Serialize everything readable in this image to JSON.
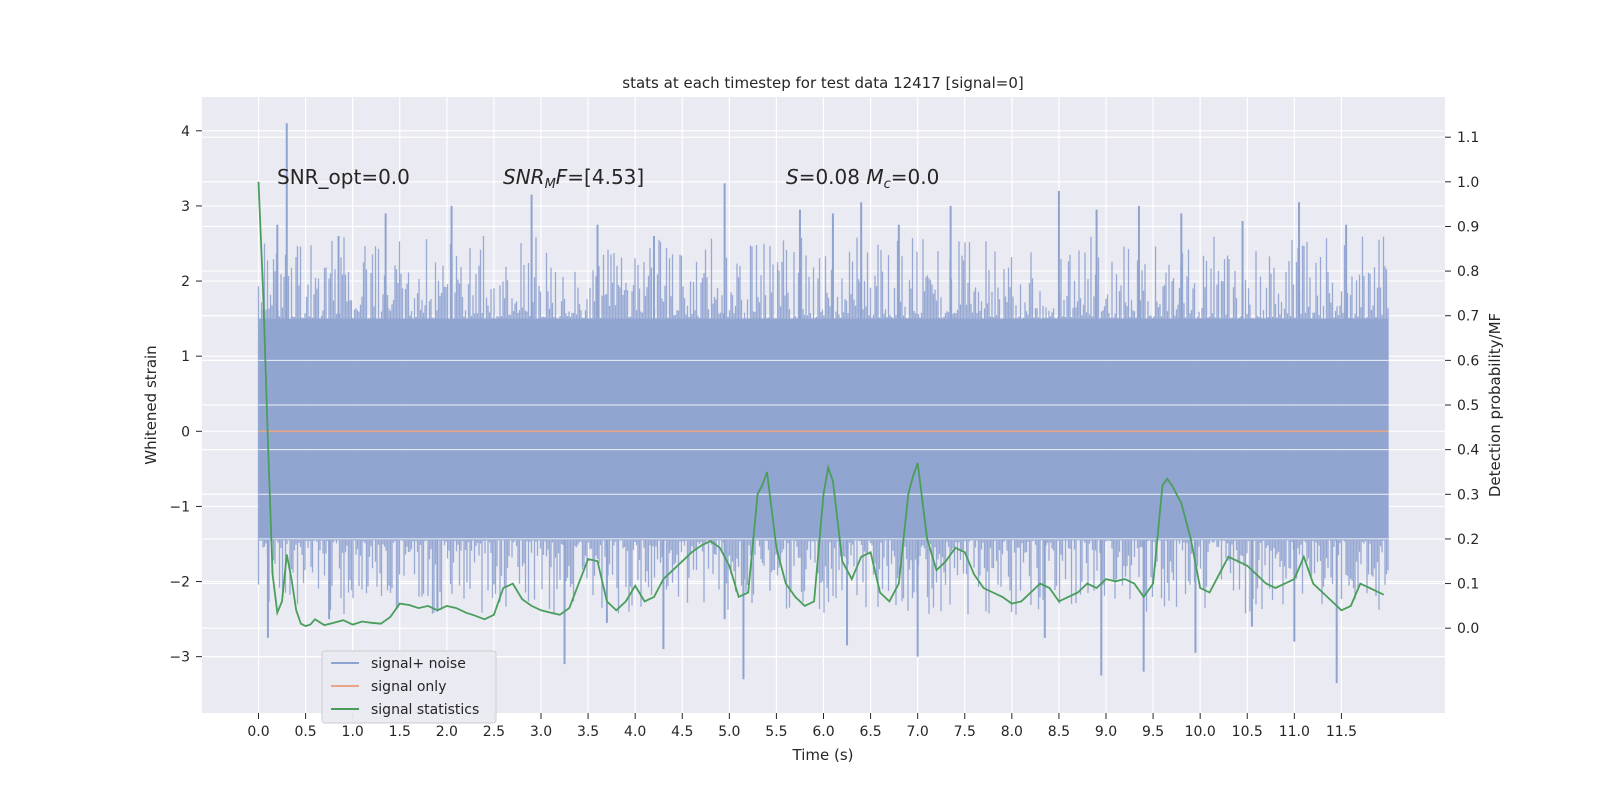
{
  "chart_data": {
    "type": "line",
    "title": "stats at each timestep for test data 12417 [signal=0]",
    "xlabel": "Time (s)",
    "ylabel_left": "Whitened strain",
    "ylabel_right": "Detection probability/MF",
    "xlim": [
      -0.6,
      12.6
    ],
    "ylim_left": [
      -3.75,
      4.45
    ],
    "ylim_right": [
      -0.19,
      1.19
    ],
    "x_ticks": [
      0.0,
      0.5,
      1.0,
      1.5,
      2.0,
      2.5,
      3.0,
      3.5,
      4.0,
      4.5,
      5.0,
      5.5,
      6.0,
      6.5,
      7.0,
      7.5,
      8.0,
      8.5,
      9.0,
      9.5,
      10.0,
      10.5,
      11.0,
      11.5
    ],
    "x_tick_labels": [
      "0.0",
      "0.5",
      "1.0",
      "1.5",
      "2.0",
      "2.5",
      "3.0",
      "3.5",
      "4.0",
      "4.5",
      "5.0",
      "5.5",
      "6.0",
      "6.5",
      "7.0",
      "7.5",
      "8.0",
      "8.5",
      "9.0",
      "9.5",
      "10.0",
      "10.5",
      "11.0",
      "11.5"
    ],
    "y_left_ticks": [
      -3,
      -2,
      -1,
      0,
      1,
      2,
      3,
      4
    ],
    "y_left_tick_labels": [
      "−3",
      "−2",
      "−1",
      "0",
      "1",
      "2",
      "3",
      "4"
    ],
    "y_right_ticks": [
      0.0,
      0.1,
      0.2,
      0.3,
      0.4,
      0.5,
      0.6,
      0.7,
      0.8,
      0.9,
      1.0,
      1.1
    ],
    "y_right_tick_labels": [
      "0.0",
      "0.1",
      "0.2",
      "0.3",
      "0.4",
      "0.5",
      "0.6",
      "0.7",
      "0.8",
      "0.9",
      "1.0",
      "1.1"
    ],
    "annotations": [
      {
        "text": "SNR_opt=0.0",
        "x": 0.2,
        "y": 3.35
      },
      {
        "text": "SNR_MF=[4.53]",
        "x": 2.6,
        "y": 3.35
      },
      {
        "text": "S=0.08   M_c=0.0",
        "x": 5.6,
        "y": 3.35
      }
    ],
    "legend": {
      "position": "lower-left",
      "entries": [
        {
          "label": "signal+ noise",
          "color": "#8fa3cf"
        },
        {
          "label": "signal only",
          "color": "#e8a587"
        },
        {
          "label": "signal statistics",
          "color": "#4a9e5c"
        }
      ]
    },
    "series": [
      {
        "name": "signal+ noise",
        "color": "#8fa3cf",
        "x_start": 0.0,
        "x_end": 12.0,
        "core_range": [
          -1.45,
          1.5
        ],
        "peaks_high": [
          [
            0.3,
            4.1
          ],
          [
            0.2,
            2.75
          ],
          [
            0.85,
            2.6
          ],
          [
            1.35,
            2.9
          ],
          [
            2.05,
            3.0
          ],
          [
            2.9,
            3.15
          ],
          [
            3.6,
            2.75
          ],
          [
            4.2,
            2.6
          ],
          [
            4.95,
            3.3
          ],
          [
            5.75,
            2.95
          ],
          [
            6.1,
            2.9
          ],
          [
            6.4,
            3.05
          ],
          [
            6.8,
            2.75
          ],
          [
            7.35,
            3.0
          ],
          [
            8.5,
            3.2
          ],
          [
            8.9,
            2.95
          ],
          [
            9.35,
            3.0
          ],
          [
            9.8,
            2.9
          ],
          [
            10.45,
            2.8
          ],
          [
            11.05,
            3.05
          ],
          [
            11.55,
            2.75
          ]
        ],
        "peaks_low": [
          [
            0.1,
            -2.75
          ],
          [
            0.75,
            -2.5
          ],
          [
            1.9,
            -2.4
          ],
          [
            3.25,
            -3.1
          ],
          [
            3.7,
            -2.55
          ],
          [
            4.3,
            -2.9
          ],
          [
            4.95,
            -2.5
          ],
          [
            5.15,
            -3.3
          ],
          [
            6.25,
            -2.85
          ],
          [
            7.0,
            -3.0
          ],
          [
            8.35,
            -2.75
          ],
          [
            8.95,
            -3.25
          ],
          [
            9.4,
            -3.2
          ],
          [
            9.95,
            -2.95
          ],
          [
            10.55,
            -2.6
          ],
          [
            11.0,
            -2.8
          ],
          [
            11.45,
            -3.35
          ]
        ]
      },
      {
        "name": "signal only",
        "color": "#e8a587",
        "x": [
          0.0,
          12.0
        ],
        "values": [
          0.0,
          0.0
        ]
      },
      {
        "name": "signal statistics",
        "color": "#4a9e5c",
        "axis": "right",
        "x": [
          0.0,
          0.05,
          0.1,
          0.15,
          0.2,
          0.25,
          0.3,
          0.35,
          0.4,
          0.45,
          0.5,
          0.55,
          0.6,
          0.7,
          0.8,
          0.9,
          1.0,
          1.1,
          1.2,
          1.3,
          1.4,
          1.5,
          1.6,
          1.7,
          1.8,
          1.9,
          2.0,
          2.1,
          2.2,
          2.3,
          2.4,
          2.5,
          2.6,
          2.7,
          2.8,
          2.9,
          3.0,
          3.1,
          3.2,
          3.3,
          3.4,
          3.5,
          3.6,
          3.7,
          3.8,
          3.9,
          4.0,
          4.1,
          4.2,
          4.3,
          4.4,
          4.5,
          4.6,
          4.7,
          4.8,
          4.9,
          5.0,
          5.1,
          5.2,
          5.3,
          5.35,
          5.4,
          5.5,
          5.6,
          5.7,
          5.8,
          5.9,
          6.0,
          6.05,
          6.1,
          6.2,
          6.3,
          6.4,
          6.5,
          6.6,
          6.7,
          6.8,
          6.9,
          6.95,
          7.0,
          7.1,
          7.2,
          7.3,
          7.4,
          7.5,
          7.6,
          7.7,
          7.8,
          7.9,
          8.0,
          8.1,
          8.2,
          8.3,
          8.4,
          8.5,
          8.6,
          8.7,
          8.8,
          8.9,
          9.0,
          9.1,
          9.2,
          9.3,
          9.4,
          9.5,
          9.6,
          9.65,
          9.7,
          9.8,
          9.9,
          10.0,
          10.1,
          10.2,
          10.3,
          10.4,
          10.5,
          10.6,
          10.7,
          10.8,
          10.9,
          11.0,
          11.1,
          11.2,
          11.3,
          11.4,
          11.5,
          11.6,
          11.7,
          11.8,
          11.9,
          11.95
        ],
        "values": [
          1.0,
          0.75,
          0.42,
          0.12,
          0.035,
          0.06,
          0.165,
          0.11,
          0.04,
          0.01,
          0.005,
          0.008,
          0.02,
          0.007,
          0.012,
          0.018,
          0.008,
          0.015,
          0.012,
          0.01,
          0.025,
          0.055,
          0.052,
          0.045,
          0.05,
          0.04,
          0.05,
          0.045,
          0.035,
          0.028,
          0.02,
          0.03,
          0.09,
          0.1,
          0.065,
          0.05,
          0.04,
          0.035,
          0.03,
          0.045,
          0.1,
          0.155,
          0.15,
          0.06,
          0.04,
          0.06,
          0.095,
          0.06,
          0.07,
          0.11,
          0.13,
          0.15,
          0.17,
          0.185,
          0.195,
          0.18,
          0.14,
          0.07,
          0.08,
          0.3,
          0.32,
          0.35,
          0.18,
          0.1,
          0.07,
          0.05,
          0.06,
          0.3,
          0.36,
          0.33,
          0.15,
          0.11,
          0.16,
          0.17,
          0.08,
          0.06,
          0.1,
          0.3,
          0.34,
          0.37,
          0.2,
          0.13,
          0.15,
          0.18,
          0.17,
          0.12,
          0.09,
          0.08,
          0.07,
          0.055,
          0.06,
          0.08,
          0.1,
          0.09,
          0.06,
          0.07,
          0.08,
          0.1,
          0.09,
          0.11,
          0.105,
          0.11,
          0.1,
          0.07,
          0.1,
          0.32,
          0.335,
          0.32,
          0.28,
          0.2,
          0.09,
          0.08,
          0.12,
          0.16,
          0.15,
          0.14,
          0.12,
          0.1,
          0.09,
          0.1,
          0.11,
          0.16,
          0.1,
          0.08,
          0.06,
          0.04,
          0.05,
          0.1,
          0.09,
          0.08,
          0.075
        ]
      }
    ]
  }
}
